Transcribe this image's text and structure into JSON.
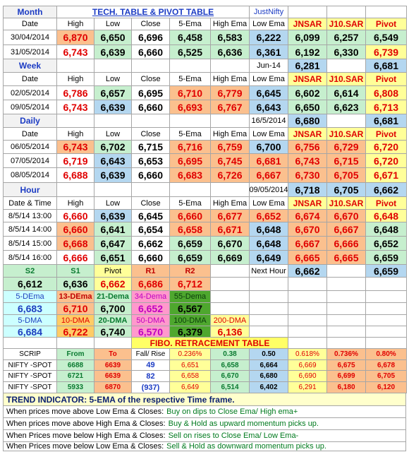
{
  "table": {
    "rows": [
      [
        "Month",
        "TECH. TABLE  &  PIVOT TABLE",
        "JustNifty"
      ],
      [
        "Date",
        "High",
        "Low",
        "Close",
        "5-Ema",
        "High Ema",
        "Low Ema",
        "JNSAR",
        "J10.SAR",
        "Pivot"
      ],
      [
        "30/04/2014",
        "6,870",
        "6,650",
        "6,696",
        "6,458",
        "6,583",
        "6,222",
        "6,099",
        "6,257",
        "6,549"
      ],
      [
        "31/05/2014",
        "6,743",
        "6,639",
        "6,660",
        "6,525",
        "6,636",
        "6,361",
        "6,192",
        "6,330",
        "6,739"
      ],
      [
        "Week",
        "Jun-14",
        "6,281",
        "6,681"
      ],
      [
        "Date",
        "High",
        "Low",
        "Close",
        "5-Ema",
        "High Ema",
        "Low Ema",
        "JNSAR",
        "J10.SAR",
        "Pivot"
      ],
      [
        "02/05/2014",
        "6,786",
        "6,657",
        "6,695",
        "6,710",
        "6,779",
        "6,645",
        "6,602",
        "6,614",
        "6,808"
      ],
      [
        "09/05/2014",
        "6,743",
        "6,639",
        "6,660",
        "6,693",
        "6,767",
        "6,643",
        "6,650",
        "6,623",
        "6,713"
      ],
      [
        "Daily",
        "16/5/2014",
        "6,680",
        "6,681"
      ],
      [
        "Date",
        "High",
        "Low",
        "Close",
        "5-Ema",
        "High Ema",
        "Low Ema",
        "JNSAR",
        "J10.SAR",
        "Pivot"
      ],
      [
        "06/05/2014",
        "6,743",
        "6,702",
        "6,715",
        "6,716",
        "6,759",
        "6,700",
        "6,756",
        "6,729",
        "6,720"
      ],
      [
        "07/05/2014",
        "6,719",
        "6,643",
        "6,653",
        "6,695",
        "6,745",
        "6,681",
        "6,743",
        "6,715",
        "6,720"
      ],
      [
        "08/05/2014",
        "6,688",
        "6,639",
        "6,660",
        "6,683",
        "6,726",
        "6,667",
        "6,730",
        "6,705",
        "6,671"
      ],
      [
        "Hour",
        "09/05/2014",
        "6,718",
        "6,705",
        "6,662"
      ],
      [
        "Date & Time",
        "High",
        "Low",
        "Close",
        "5-Ema",
        "High Ema",
        "Low Ema",
        "JNSAR",
        "J10.SAR",
        "Pivot"
      ],
      [
        "8/5/14 13:00",
        "6,660",
        "6,639",
        "6,645",
        "6,660",
        "6,677",
        "6,652",
        "6,674",
        "6,670",
        "6,648"
      ],
      [
        "8/5/14 14:00",
        "6,660",
        "6,641",
        "6,654",
        "6,658",
        "6,671",
        "6,648",
        "6,670",
        "6,667",
        "6,648"
      ],
      [
        "8/5/14 15:00",
        "6,668",
        "6,647",
        "6,662",
        "6,659",
        "6,670",
        "6,648",
        "6,667",
        "6,666",
        "6,652"
      ],
      [
        "8/5/14 16:00",
        "6,666",
        "6,651",
        "6,660",
        "6,659",
        "6,669",
        "6,649",
        "6,665",
        "6,665",
        "6,659"
      ],
      [
        "S2",
        "S1",
        "Pivot",
        "R1",
        "R2",
        "Next Hour",
        "6,662",
        "6,659"
      ],
      [
        "6,612",
        "6,636",
        "6,662",
        "6,686",
        "6,712"
      ],
      [
        "5-DEma",
        "13-DEma",
        "21-Dema",
        "34-Dema",
        "55-Dema"
      ],
      [
        "6,683",
        "6,710",
        "6,700",
        "6,652",
        "6,567"
      ],
      [
        "5-DMA",
        "10-DMA",
        "20-DMA",
        "50-DMA",
        "100-DMA",
        "200-DMA"
      ],
      [
        "6,684",
        "6,722",
        "6,740",
        "6,570",
        "6,379",
        "6,136"
      ],
      [
        "FIBO. RETRACEMENT TABLE"
      ],
      [
        "SCRIP",
        "From",
        "To",
        "Fall/ Rise",
        "0.236%",
        "0.38",
        "0.50",
        "0.618%",
        "0.736%",
        "0.80%"
      ],
      [
        "NIFTY -SPOT",
        "6688",
        "6639",
        "49",
        "6,651",
        "6,658",
        "6,664",
        "6,669",
        "6,675",
        "6,678"
      ],
      [
        "NIFTY -SPOT",
        "6721",
        "6639",
        "82",
        "6,658",
        "6,670",
        "6,680",
        "6,690",
        "6,699",
        "6,705"
      ],
      [
        "NIFTY -SPOT",
        "5933",
        "6870",
        "(937)",
        "6,649",
        "6,514",
        "6,402",
        "6,291",
        "6,180",
        "6,120"
      ]
    ],
    "trend": "TREND INDICATOR: 5-EMA of the respective Time frame.",
    "notes": [
      [
        "When prices move above Low Ema & Closes:",
        "Buy on dips to Close Ema/ High ema+"
      ],
      [
        "When prices move above High Ema & Closes:",
        "Buy & Hold as upward momentum picks up."
      ],
      [
        "When Prices move below High Ema & Closes:",
        "Sell on rises to Close Ema/ Low Ema-"
      ],
      [
        "When Prices move below Low Ema & Closes:",
        "Sell & Hold as downward momentum picks up."
      ]
    ]
  }
}
